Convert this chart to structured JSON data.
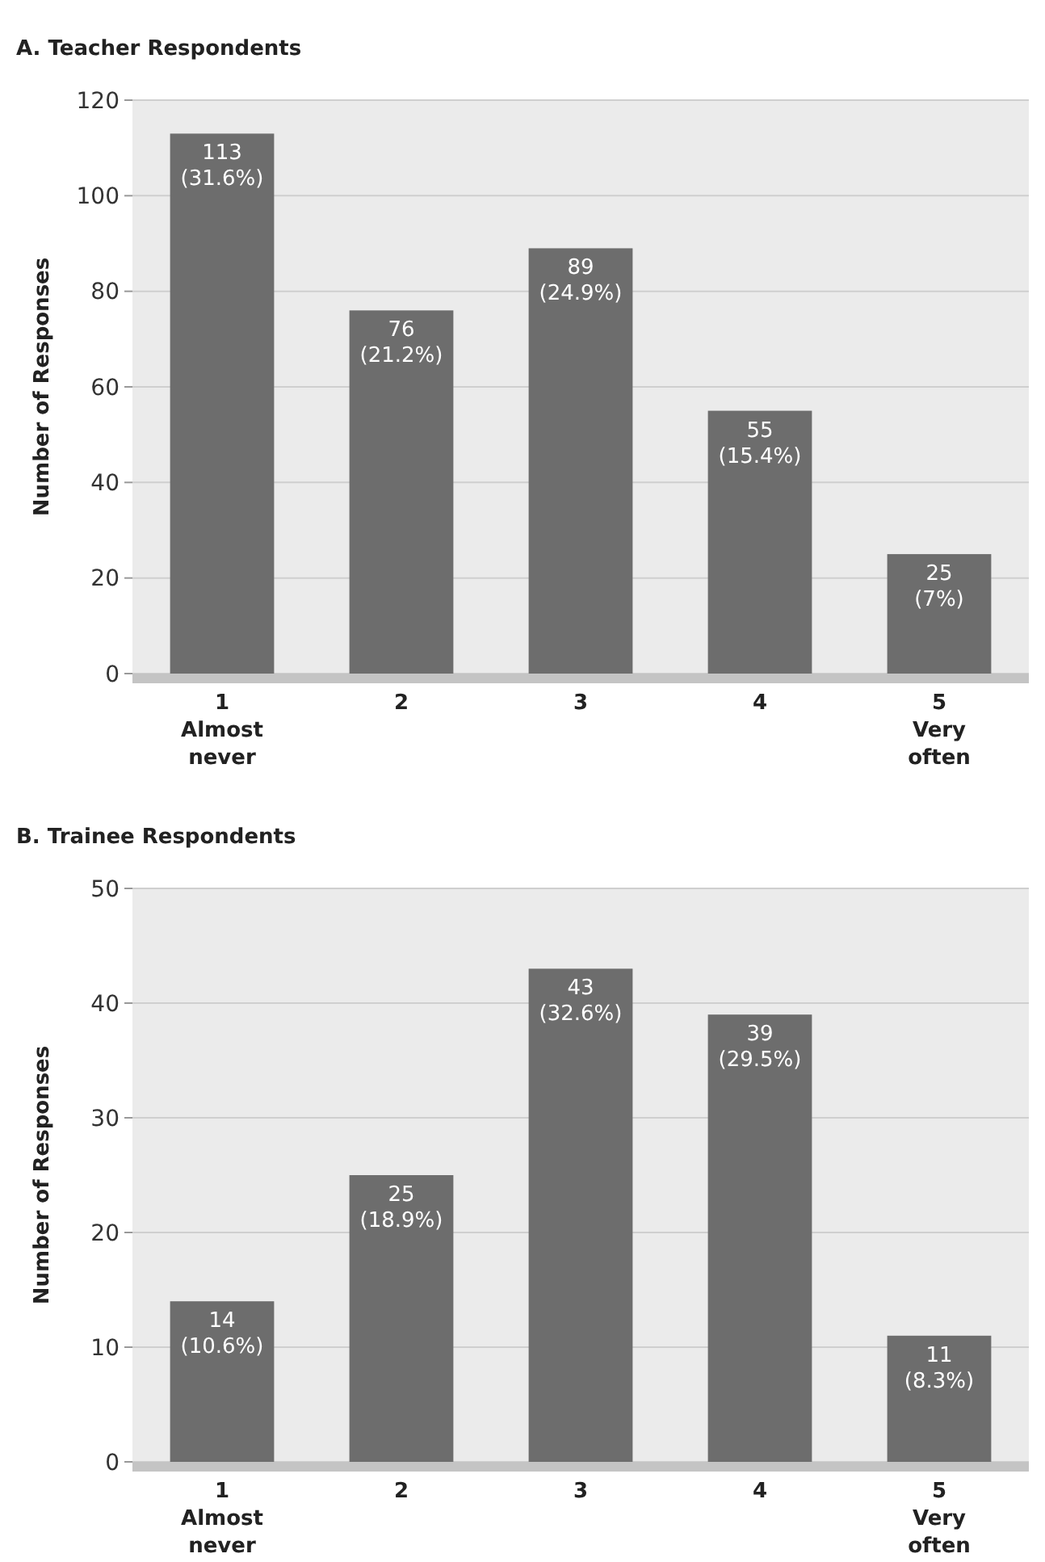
{
  "chart_data": [
    {
      "type": "bar",
      "title": "A. Teacher Respondents",
      "ylabel": "Number of Responses",
      "categories": [
        "1\nAlmost\nnever",
        "2",
        "3",
        "4",
        "5\nVery\noften"
      ],
      "values": [
        113,
        76,
        89,
        55,
        25
      ],
      "value_labels": [
        "113\n(31.6%)",
        "76\n(21.2%)",
        "89\n(24.9%)",
        "55\n(15.4%)",
        "25\n(7%)"
      ],
      "color": "#6d6d6d",
      "ylim": [
        0,
        120
      ],
      "yticks": [
        0,
        20,
        40,
        60,
        80,
        100,
        120
      ],
      "grid": "y"
    },
    {
      "type": "bar",
      "title": "B. Trainee Respondents",
      "ylabel": "Number of Responses",
      "categories": [
        "1\nAlmost\nnever",
        "2",
        "3",
        "4",
        "5\nVery\noften"
      ],
      "values": [
        14,
        25,
        43,
        39,
        11
      ],
      "value_labels": [
        "14\n(10.6%)",
        "25\n(18.9%)",
        "43\n(32.6%)",
        "39\n(29.5%)",
        "11\n(8.3%)"
      ],
      "color": "#6d6d6d",
      "ylim": [
        0,
        50
      ],
      "yticks": [
        0,
        10,
        20,
        30,
        40,
        50
      ],
      "grid": "y"
    }
  ]
}
